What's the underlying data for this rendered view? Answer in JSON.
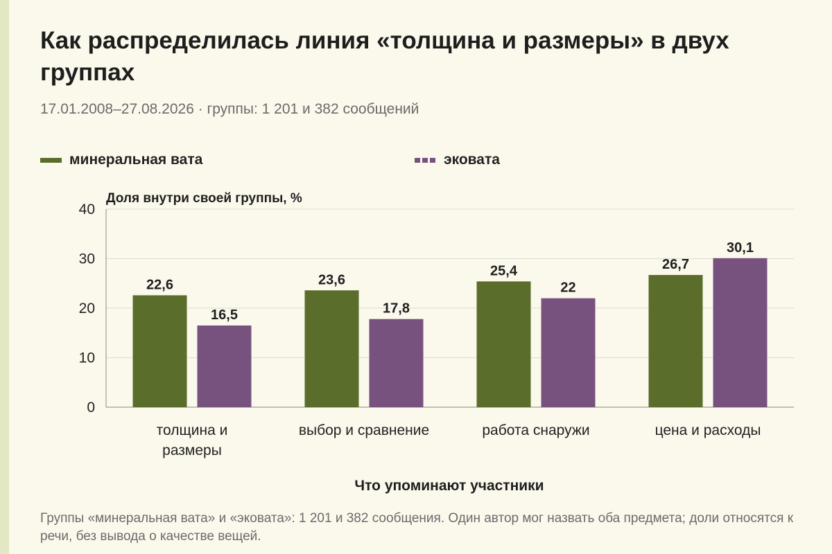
{
  "header": {
    "title": "Как распределилась линия «толщина и размеры» в двух группах",
    "subtitle": "17.01.2008–27.08.2026 · группы: 1 201 и 382 сообщений"
  },
  "footnote": "Группы «минеральная вата» и «эковата»: 1 201 и 382 сообщения. Один автор мог назвать оба предмета; доли относятся к речи, без вывода о качестве вещей.",
  "colors": {
    "mineral": "#5b6d2b",
    "eco": "#78527f",
    "grid": "#dcdcd2",
    "background": "#fbf8ec"
  },
  "chart_data": {
    "type": "bar",
    "ylabel": "Доля внутри своей группы, %",
    "xlabel": "Что упоминают участники",
    "ylim": [
      0,
      40
    ],
    "yticks": [
      0,
      10,
      20,
      30,
      40
    ],
    "grid": true,
    "legend_placement": "top-left",
    "categories": [
      [
        "толщина и",
        "размеры"
      ],
      [
        "выбор и сравнение"
      ],
      [
        "работа снаружи"
      ],
      [
        "цена и расходы"
      ]
    ],
    "series": [
      {
        "name": "минеральная вата",
        "values": [
          22.6,
          23.6,
          25.4,
          26.7
        ],
        "labels": [
          "22,6",
          "23,6",
          "25,4",
          "26,7"
        ]
      },
      {
        "name": "эковата",
        "values": [
          16.5,
          17.8,
          22,
          30.1
        ],
        "labels": [
          "16,5",
          "17,8",
          "22",
          "30,1"
        ]
      }
    ]
  }
}
